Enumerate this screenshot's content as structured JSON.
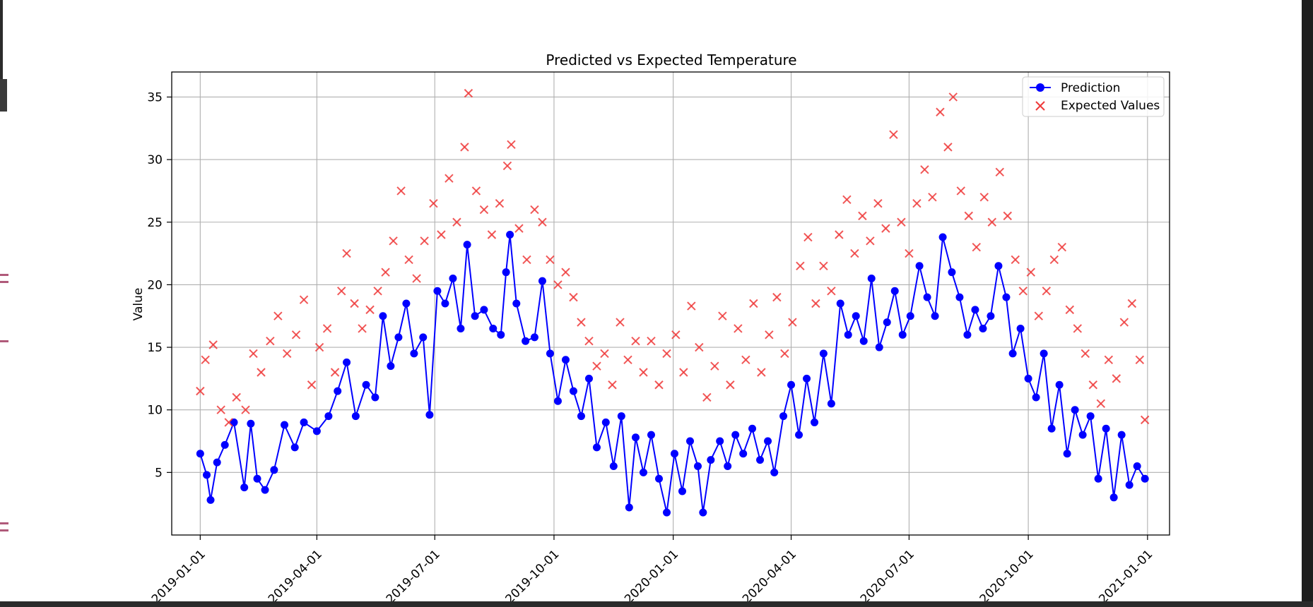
{
  "chart_data": {
    "type": "line",
    "title": "Predicted vs Expected Temperature",
    "xlabel": "",
    "ylabel": "Value",
    "x_range": [
      "2018-12-10",
      "2021-01-18"
    ],
    "ylim": [
      0.0,
      37.0
    ],
    "grid": true,
    "legend_position": "upper right",
    "x_ticks": [
      "2019-01-01",
      "2019-04-01",
      "2019-07-01",
      "2019-10-01",
      "2020-01-01",
      "2020-04-01",
      "2020-07-01",
      "2020-10-01",
      "2021-01-01"
    ],
    "y_ticks": [
      5,
      10,
      15,
      20,
      25,
      30,
      35
    ],
    "series": [
      {
        "name": "Prediction",
        "style": "line-with-circle-markers",
        "color": "#0000ff",
        "points": [
          [
            "2019-01-01",
            6.5
          ],
          [
            "2019-01-06",
            4.8
          ],
          [
            "2019-01-09",
            2.8
          ],
          [
            "2019-01-14",
            5.8
          ],
          [
            "2019-01-20",
            7.2
          ],
          [
            "2019-01-27",
            9.0
          ],
          [
            "2019-02-04",
            3.8
          ],
          [
            "2019-02-09",
            8.9
          ],
          [
            "2019-02-14",
            4.5
          ],
          [
            "2019-02-20",
            3.6
          ],
          [
            "2019-02-27",
            5.2
          ],
          [
            "2019-03-07",
            8.8
          ],
          [
            "2019-03-15",
            7.0
          ],
          [
            "2019-03-22",
            9.0
          ],
          [
            "2019-04-01",
            8.3
          ],
          [
            "2019-04-10",
            9.5
          ],
          [
            "2019-04-17",
            11.5
          ],
          [
            "2019-04-24",
            13.8
          ],
          [
            "2019-05-01",
            9.5
          ],
          [
            "2019-05-09",
            12.0
          ],
          [
            "2019-05-16",
            11.0
          ],
          [
            "2019-05-22",
            17.5
          ],
          [
            "2019-05-28",
            13.5
          ],
          [
            "2019-06-03",
            15.8
          ],
          [
            "2019-06-09",
            18.5
          ],
          [
            "2019-06-15",
            14.5
          ],
          [
            "2019-06-22",
            15.8
          ],
          [
            "2019-06-27",
            9.6
          ],
          [
            "2019-07-03",
            19.5
          ],
          [
            "2019-07-09",
            18.5
          ],
          [
            "2019-07-15",
            20.5
          ],
          [
            "2019-07-21",
            16.5
          ],
          [
            "2019-07-26",
            23.2
          ],
          [
            "2019-08-01",
            17.5
          ],
          [
            "2019-08-08",
            18.0
          ],
          [
            "2019-08-15",
            16.5
          ],
          [
            "2019-08-21",
            16.0
          ],
          [
            "2019-08-25",
            21.0
          ],
          [
            "2019-08-28",
            24.0
          ],
          [
            "2019-09-02",
            18.5
          ],
          [
            "2019-09-09",
            15.5
          ],
          [
            "2019-09-16",
            15.8
          ],
          [
            "2019-09-22",
            20.3
          ],
          [
            "2019-09-28",
            14.5
          ],
          [
            "2019-10-04",
            10.7
          ],
          [
            "2019-10-10",
            14.0
          ],
          [
            "2019-10-16",
            11.5
          ],
          [
            "2019-10-22",
            9.5
          ],
          [
            "2019-10-28",
            12.5
          ],
          [
            "2019-11-03",
            7.0
          ],
          [
            "2019-11-10",
            9.0
          ],
          [
            "2019-11-16",
            5.5
          ],
          [
            "2019-11-22",
            9.5
          ],
          [
            "2019-11-28",
            2.2
          ],
          [
            "2019-12-03",
            7.8
          ],
          [
            "2019-12-09",
            5.0
          ],
          [
            "2019-12-15",
            8.0
          ],
          [
            "2019-12-21",
            4.5
          ],
          [
            "2019-12-27",
            1.8
          ],
          [
            "2020-01-02",
            6.5
          ],
          [
            "2020-01-08",
            3.5
          ],
          [
            "2020-01-14",
            7.5
          ],
          [
            "2020-01-20",
            5.5
          ],
          [
            "2020-01-24",
            1.8
          ],
          [
            "2020-01-30",
            6.0
          ],
          [
            "2020-02-06",
            7.5
          ],
          [
            "2020-02-12",
            5.5
          ],
          [
            "2020-02-18",
            8.0
          ],
          [
            "2020-02-24",
            6.5
          ],
          [
            "2020-03-02",
            8.5
          ],
          [
            "2020-03-08",
            6.0
          ],
          [
            "2020-03-14",
            7.5
          ],
          [
            "2020-03-19",
            5.0
          ],
          [
            "2020-03-26",
            9.5
          ],
          [
            "2020-04-01",
            12.0
          ],
          [
            "2020-04-07",
            8.0
          ],
          [
            "2020-04-13",
            12.5
          ],
          [
            "2020-04-19",
            9.0
          ],
          [
            "2020-04-26",
            14.5
          ],
          [
            "2020-05-02",
            10.5
          ],
          [
            "2020-05-09",
            18.5
          ],
          [
            "2020-05-15",
            16.0
          ],
          [
            "2020-05-21",
            17.5
          ],
          [
            "2020-05-27",
            15.5
          ],
          [
            "2020-06-02",
            20.5
          ],
          [
            "2020-06-08",
            15.0
          ],
          [
            "2020-06-14",
            17.0
          ],
          [
            "2020-06-20",
            19.5
          ],
          [
            "2020-06-26",
            16.0
          ],
          [
            "2020-07-02",
            17.5
          ],
          [
            "2020-07-09",
            21.5
          ],
          [
            "2020-07-15",
            19.0
          ],
          [
            "2020-07-21",
            17.5
          ],
          [
            "2020-07-27",
            23.8
          ],
          [
            "2020-08-03",
            21.0
          ],
          [
            "2020-08-09",
            19.0
          ],
          [
            "2020-08-15",
            16.0
          ],
          [
            "2020-08-21",
            18.0
          ],
          [
            "2020-08-27",
            16.5
          ],
          [
            "2020-09-02",
            17.5
          ],
          [
            "2020-09-08",
            21.5
          ],
          [
            "2020-09-14",
            19.0
          ],
          [
            "2020-09-19",
            14.5
          ],
          [
            "2020-09-25",
            16.5
          ],
          [
            "2020-10-01",
            12.5
          ],
          [
            "2020-10-07",
            11.0
          ],
          [
            "2020-10-13",
            14.5
          ],
          [
            "2020-10-19",
            8.5
          ],
          [
            "2020-10-25",
            12.0
          ],
          [
            "2020-10-31",
            6.5
          ],
          [
            "2020-11-06",
            10.0
          ],
          [
            "2020-11-12",
            8.0
          ],
          [
            "2020-11-18",
            9.5
          ],
          [
            "2020-11-24",
            4.5
          ],
          [
            "2020-11-30",
            8.5
          ],
          [
            "2020-12-06",
            3.0
          ],
          [
            "2020-12-12",
            8.0
          ],
          [
            "2020-12-18",
            4.0
          ],
          [
            "2020-12-24",
            5.5
          ],
          [
            "2020-12-30",
            4.5
          ]
        ]
      },
      {
        "name": "Expected Values",
        "style": "x-markers",
        "color": "#ef3a3a",
        "points": [
          [
            "2019-01-01",
            11.5
          ],
          [
            "2019-01-05",
            14.0
          ],
          [
            "2019-01-11",
            15.2
          ],
          [
            "2019-01-17",
            10.0
          ],
          [
            "2019-01-23",
            9.0
          ],
          [
            "2019-01-29",
            11.0
          ],
          [
            "2019-02-05",
            10.0
          ],
          [
            "2019-02-11",
            14.5
          ],
          [
            "2019-02-17",
            13.0
          ],
          [
            "2019-02-24",
            15.5
          ],
          [
            "2019-03-02",
            17.5
          ],
          [
            "2019-03-09",
            14.5
          ],
          [
            "2019-03-16",
            16.0
          ],
          [
            "2019-03-22",
            18.8
          ],
          [
            "2019-03-28",
            12.0
          ],
          [
            "2019-04-03",
            15.0
          ],
          [
            "2019-04-09",
            16.5
          ],
          [
            "2019-04-15",
            13.0
          ],
          [
            "2019-04-20",
            19.5
          ],
          [
            "2019-04-24",
            22.5
          ],
          [
            "2019-04-30",
            18.5
          ],
          [
            "2019-05-06",
            16.5
          ],
          [
            "2019-05-12",
            18.0
          ],
          [
            "2019-05-18",
            19.5
          ],
          [
            "2019-05-24",
            21.0
          ],
          [
            "2019-05-30",
            23.5
          ],
          [
            "2019-06-05",
            27.5
          ],
          [
            "2019-06-11",
            22.0
          ],
          [
            "2019-06-17",
            20.5
          ],
          [
            "2019-06-23",
            23.5
          ],
          [
            "2019-06-30",
            26.5
          ],
          [
            "2019-07-06",
            24.0
          ],
          [
            "2019-07-12",
            28.5
          ],
          [
            "2019-07-18",
            25.0
          ],
          [
            "2019-07-24",
            31.0
          ],
          [
            "2019-07-27",
            35.3
          ],
          [
            "2019-08-02",
            27.5
          ],
          [
            "2019-08-08",
            26.0
          ],
          [
            "2019-08-14",
            24.0
          ],
          [
            "2019-08-20",
            26.5
          ],
          [
            "2019-08-26",
            29.5
          ],
          [
            "2019-08-29",
            31.2
          ],
          [
            "2019-09-04",
            24.5
          ],
          [
            "2019-09-10",
            22.0
          ],
          [
            "2019-09-16",
            26.0
          ],
          [
            "2019-09-22",
            25.0
          ],
          [
            "2019-09-28",
            22.0
          ],
          [
            "2019-10-04",
            20.0
          ],
          [
            "2019-10-10",
            21.0
          ],
          [
            "2019-10-16",
            19.0
          ],
          [
            "2019-10-22",
            17.0
          ],
          [
            "2019-10-28",
            15.5
          ],
          [
            "2019-11-03",
            13.5
          ],
          [
            "2019-11-09",
            14.5
          ],
          [
            "2019-11-15",
            12.0
          ],
          [
            "2019-11-21",
            17.0
          ],
          [
            "2019-11-27",
            14.0
          ],
          [
            "2019-12-03",
            15.5
          ],
          [
            "2019-12-09",
            13.0
          ],
          [
            "2019-12-15",
            15.5
          ],
          [
            "2019-12-21",
            12.0
          ],
          [
            "2019-12-27",
            14.5
          ],
          [
            "2020-01-03",
            16.0
          ],
          [
            "2020-01-09",
            13.0
          ],
          [
            "2020-01-15",
            18.3
          ],
          [
            "2020-01-21",
            15.0
          ],
          [
            "2020-01-27",
            11.0
          ],
          [
            "2020-02-02",
            13.5
          ],
          [
            "2020-02-08",
            17.5
          ],
          [
            "2020-02-14",
            12.0
          ],
          [
            "2020-02-20",
            16.5
          ],
          [
            "2020-02-26",
            14.0
          ],
          [
            "2020-03-03",
            18.5
          ],
          [
            "2020-03-09",
            13.0
          ],
          [
            "2020-03-15",
            16.0
          ],
          [
            "2020-03-21",
            19.0
          ],
          [
            "2020-03-27",
            14.5
          ],
          [
            "2020-04-02",
            17.0
          ],
          [
            "2020-04-08",
            21.5
          ],
          [
            "2020-04-14",
            23.8
          ],
          [
            "2020-04-20",
            18.5
          ],
          [
            "2020-04-26",
            21.5
          ],
          [
            "2020-05-02",
            19.5
          ],
          [
            "2020-05-08",
            24.0
          ],
          [
            "2020-05-14",
            26.8
          ],
          [
            "2020-05-20",
            22.5
          ],
          [
            "2020-05-26",
            25.5
          ],
          [
            "2020-06-01",
            23.5
          ],
          [
            "2020-06-07",
            26.5
          ],
          [
            "2020-06-13",
            24.5
          ],
          [
            "2020-06-19",
            32.0
          ],
          [
            "2020-06-25",
            25.0
          ],
          [
            "2020-07-01",
            22.5
          ],
          [
            "2020-07-07",
            26.5
          ],
          [
            "2020-07-13",
            29.2
          ],
          [
            "2020-07-19",
            27.0
          ],
          [
            "2020-07-25",
            33.8
          ],
          [
            "2020-07-31",
            31.0
          ],
          [
            "2020-08-04",
            35.0
          ],
          [
            "2020-08-10",
            27.5
          ],
          [
            "2020-08-16",
            25.5
          ],
          [
            "2020-08-22",
            23.0
          ],
          [
            "2020-08-28",
            27.0
          ],
          [
            "2020-09-03",
            25.0
          ],
          [
            "2020-09-09",
            29.0
          ],
          [
            "2020-09-15",
            25.5
          ],
          [
            "2020-09-21",
            22.0
          ],
          [
            "2020-09-27",
            19.5
          ],
          [
            "2020-10-03",
            21.0
          ],
          [
            "2020-10-09",
            17.5
          ],
          [
            "2020-10-15",
            19.5
          ],
          [
            "2020-10-21",
            22.0
          ],
          [
            "2020-10-27",
            23.0
          ],
          [
            "2020-11-02",
            18.0
          ],
          [
            "2020-11-08",
            16.5
          ],
          [
            "2020-11-14",
            14.5
          ],
          [
            "2020-11-20",
            12.0
          ],
          [
            "2020-11-26",
            10.5
          ],
          [
            "2020-12-02",
            14.0
          ],
          [
            "2020-12-08",
            12.5
          ],
          [
            "2020-12-14",
            17.0
          ],
          [
            "2020-12-20",
            18.5
          ],
          [
            "2020-12-26",
            14.0
          ],
          [
            "2020-12-30",
            9.2
          ]
        ]
      }
    ]
  }
}
